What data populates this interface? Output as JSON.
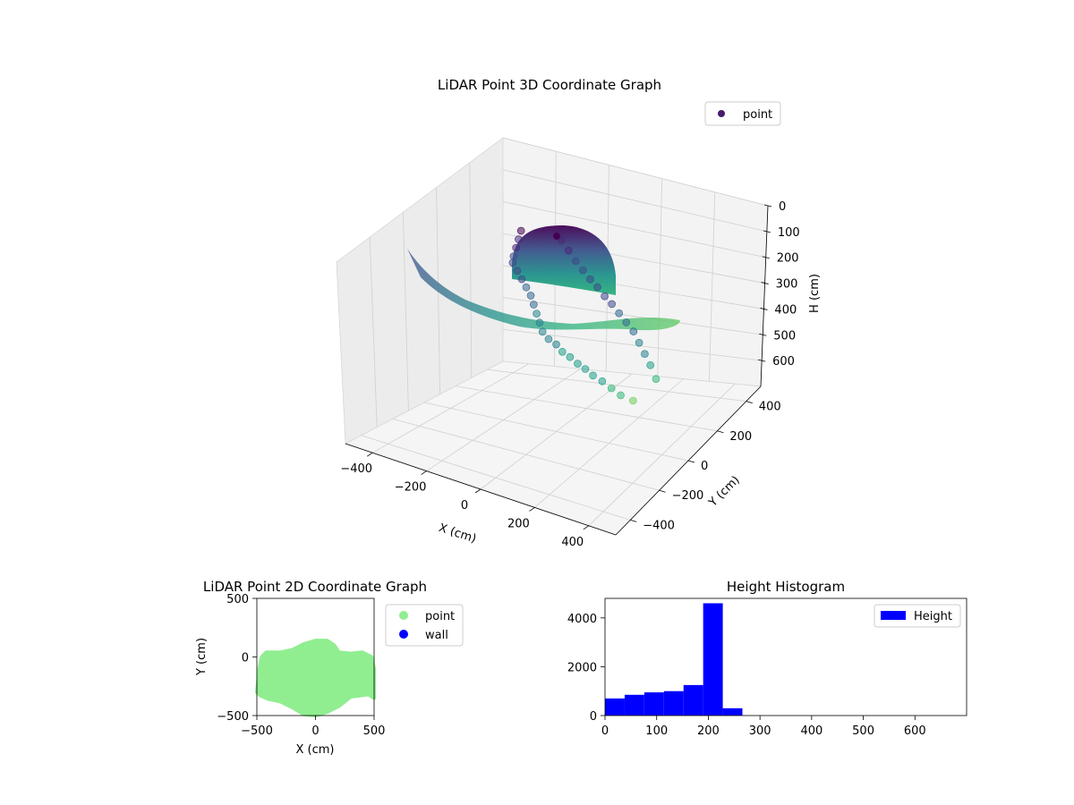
{
  "chart_data": [
    {
      "type": "scatter",
      "projection": "3d",
      "title": "LiDAR Point 3D Coordinate Graph",
      "xlabel": "X (cm)",
      "ylabel": "Y (cm)",
      "zlabel": "H (cm)",
      "xlim": [
        -500,
        500
      ],
      "ylim": [
        -500,
        500
      ],
      "zlim": [
        0,
        700
      ],
      "z_inverted": true,
      "x_ticks": [
        "−400",
        "−200",
        "0",
        "200",
        "400"
      ],
      "y_ticks": [
        "−400",
        "−200",
        "0",
        "200",
        "400"
      ],
      "z_ticks": [
        "0",
        "100",
        "200",
        "300",
        "400",
        "500",
        "600"
      ],
      "colormap": "viridis",
      "grid": true,
      "legend": {
        "entries": [
          "point"
        ],
        "placement": "upper-right",
        "color": "#481b6d"
      },
      "series": [
        {
          "name": "point",
          "description_shape": "floor plan outline with a dome-shaped upward bulge near center",
          "points": [
            {
              "x": -420,
              "y": 250,
              "z": 220
            },
            {
              "x": -400,
              "y": 200,
              "z": 230
            },
            {
              "x": -380,
              "y": 150,
              "z": 240
            },
            {
              "x": -360,
              "y": 100,
              "z": 250
            },
            {
              "x": -340,
              "y": 60,
              "z": 255
            },
            {
              "x": -300,
              "y": 20,
              "z": 260
            },
            {
              "x": -260,
              "y": -20,
              "z": 265
            },
            {
              "x": -220,
              "y": -60,
              "z": 270
            },
            {
              "x": -180,
              "y": -100,
              "z": 275
            },
            {
              "x": -140,
              "y": -150,
              "z": 280
            },
            {
              "x": -100,
              "y": -200,
              "z": 285
            },
            {
              "x": -60,
              "y": -250,
              "z": 290
            },
            {
              "x": -20,
              "y": -300,
              "z": 295
            },
            {
              "x": 20,
              "y": -330,
              "z": 300
            },
            {
              "x": 60,
              "y": -350,
              "z": 300
            },
            {
              "x": 100,
              "y": -380,
              "z": 305
            },
            {
              "x": 140,
              "y": -400,
              "z": 305
            },
            {
              "x": 180,
              "y": -420,
              "z": 310
            },
            {
              "x": 220,
              "y": -440,
              "z": 310
            },
            {
              "x": 260,
              "y": -460,
              "z": 315
            },
            {
              "x": 300,
              "y": -470,
              "z": 320
            },
            {
              "x": 340,
              "y": -480,
              "z": 330
            },
            {
              "x": 380,
              "y": -490,
              "z": 340
            },
            {
              "x": 420,
              "y": -480,
              "z": 350
            },
            {
              "x": -300,
              "y": 300,
              "z": 230
            },
            {
              "x": -250,
              "y": 260,
              "z": 240
            },
            {
              "x": -200,
              "y": 220,
              "z": 250
            },
            {
              "x": -150,
              "y": 180,
              "z": 255
            },
            {
              "x": -100,
              "y": 140,
              "z": 260
            },
            {
              "x": -50,
              "y": 100,
              "z": 260
            },
            {
              "x": 0,
              "y": 60,
              "z": 265
            },
            {
              "x": 50,
              "y": 20,
              "z": 265
            },
            {
              "x": 100,
              "y": -20,
              "z": 270
            },
            {
              "x": 150,
              "y": -60,
              "z": 275
            },
            {
              "x": 200,
              "y": -100,
              "z": 280
            },
            {
              "x": 250,
              "y": -150,
              "z": 290
            },
            {
              "x": 300,
              "y": -200,
              "z": 300
            },
            {
              "x": 350,
              "y": -250,
              "z": 310
            },
            {
              "x": 400,
              "y": -300,
              "z": 330
            }
          ]
        }
      ]
    },
    {
      "type": "scatter",
      "title": "LiDAR Point 2D Coordinate Graph",
      "xlabel": "X (cm)",
      "ylabel": "Y (cm)",
      "xlim": [
        -500,
        500
      ],
      "ylim": [
        -500,
        500
      ],
      "x_ticks": [
        "−500",
        "0",
        "500"
      ],
      "y_ticks": [
        "500",
        "0",
        "−500"
      ],
      "grid": false,
      "legend": {
        "placement": "outside-right"
      },
      "series": [
        {
          "name": "point",
          "color": "#90ee90",
          "outline": [
            [
              -500,
              -300
            ],
            [
              -480,
              -100
            ],
            [
              -460,
              0
            ],
            [
              -420,
              40
            ],
            [
              -300,
              40
            ],
            [
              -200,
              60
            ],
            [
              -100,
              110
            ],
            [
              0,
              140
            ],
            [
              100,
              140
            ],
            [
              160,
              100
            ],
            [
              200,
              40
            ],
            [
              300,
              30
            ],
            [
              400,
              40
            ],
            [
              480,
              0
            ],
            [
              500,
              -100
            ],
            [
              500,
              -350
            ],
            [
              450,
              -320
            ],
            [
              380,
              -330
            ],
            [
              300,
              -340
            ],
            [
              200,
              -420
            ],
            [
              100,
              -470
            ],
            [
              0,
              -500
            ],
            [
              -100,
              -490
            ],
            [
              -200,
              -430
            ],
            [
              -300,
              -380
            ],
            [
              -400,
              -360
            ],
            [
              -470,
              -330
            ]
          ]
        },
        {
          "name": "wall",
          "color": "#0000ff",
          "points": []
        }
      ]
    },
    {
      "type": "bar",
      "subtype": "histogram",
      "title": "Height Histogram",
      "xlabel": "",
      "ylabel": "",
      "xlim": [
        0,
        700
      ],
      "ylim": [
        0,
        4800
      ],
      "x_ticks": [
        "0",
        "100",
        "200",
        "300",
        "400",
        "500",
        "600"
      ],
      "y_ticks": [
        "0",
        "2000",
        "4000"
      ],
      "bar_color": "#0000ff",
      "legend": {
        "entries": [
          "Height"
        ],
        "placement": "upper-right"
      },
      "bins": [
        {
          "start": 0,
          "end": 38,
          "count": 700
        },
        {
          "start": 38,
          "end": 76,
          "count": 850
        },
        {
          "start": 76,
          "end": 114,
          "count": 950
        },
        {
          "start": 114,
          "end": 152,
          "count": 1000
        },
        {
          "start": 152,
          "end": 190,
          "count": 1250
        },
        {
          "start": 190,
          "end": 228,
          "count": 4600
        },
        {
          "start": 228,
          "end": 266,
          "count": 300
        }
      ]
    }
  ]
}
